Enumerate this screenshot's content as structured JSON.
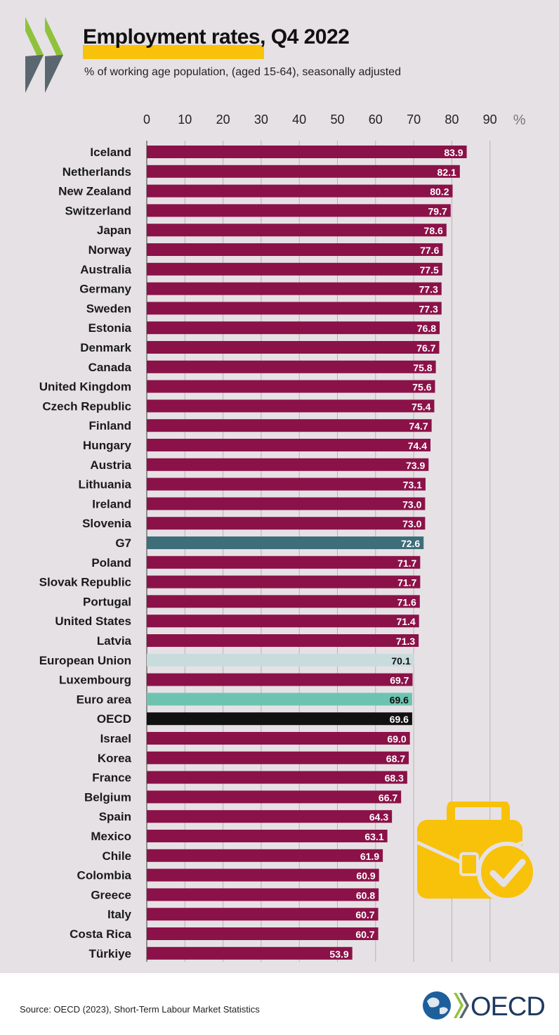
{
  "header": {
    "title": "Employment rates, Q4 2022",
    "subtitle": "% of working age population, (aged 15-64), seasonally adjusted"
  },
  "footer": {
    "source": "Source: OECD (2023), Short-Term Labour Market Statistics",
    "logo_text": "OECD"
  },
  "colors": {
    "bar_default": "#8b1248",
    "bar_g7": "#3d6e7a",
    "bar_eu": "#c8dcde",
    "bar_euro_area": "#6cc4b0",
    "bar_oecd": "#111111",
    "accent": "#f9c20a"
  },
  "icons": [
    "chevrons-logo-icon",
    "briefcase-check-icon",
    "globe-icon"
  ],
  "chart_data": {
    "type": "bar",
    "orientation": "horizontal",
    "title": "Employment rates, Q4 2022",
    "xlabel": "%",
    "xlim": [
      0,
      90
    ],
    "xticks": [
      0,
      10,
      20,
      30,
      40,
      50,
      60,
      70,
      80,
      90
    ],
    "unit_label": "%",
    "grid": true,
    "categories": [
      "Iceland",
      "Netherlands",
      "New Zealand",
      "Switzerland",
      "Japan",
      "Norway",
      "Australia",
      "Germany",
      "Sweden",
      "Estonia",
      "Denmark",
      "Canada",
      "United Kingdom",
      "Czech Republic",
      "Finland",
      "Hungary",
      "Austria",
      "Lithuania",
      "Ireland",
      "Slovenia",
      "G7",
      "Poland",
      "Slovak Republic",
      "Portugal",
      "United States",
      "Latvia",
      "European Union",
      "Luxembourg",
      "Euro area",
      "OECD",
      "Israel",
      "Korea",
      "France",
      "Belgium",
      "Spain",
      "Mexico",
      "Chile",
      "Colombia",
      "Greece",
      "Italy",
      "Costa Rica",
      "Türkiye"
    ],
    "values": [
      83.9,
      82.1,
      80.2,
      79.7,
      78.6,
      77.6,
      77.5,
      77.3,
      77.3,
      76.8,
      76.7,
      75.8,
      75.6,
      75.4,
      74.7,
      74.4,
      73.9,
      73.1,
      73.0,
      73.0,
      72.6,
      71.7,
      71.7,
      71.6,
      71.4,
      71.3,
      70.1,
      69.7,
      69.6,
      69.6,
      69.0,
      68.7,
      68.3,
      66.7,
      64.3,
      63.1,
      61.9,
      60.9,
      60.8,
      60.7,
      60.7,
      53.9
    ],
    "labels": [
      "83.9",
      "82.1",
      "80.2",
      "79.7",
      "78.6",
      "77.6",
      "77.5",
      "77.3",
      "77.3",
      "76.8",
      "76.7",
      "75.8",
      "75.6",
      "75.4",
      "74.7",
      "74.4",
      "73.9",
      "73.1",
      "73.0",
      "73.0",
      "72.6",
      "71.7",
      "71.7",
      "71.6",
      "71.4",
      "71.3",
      "70.1",
      "69.7",
      "69.6",
      "69.6",
      "69.0",
      "68.7",
      "68.3",
      "66.7",
      "64.3",
      "63.1",
      "61.9",
      "60.9",
      "60.8",
      "60.7",
      "60.7",
      "53.9"
    ],
    "highlights": {
      "G7": "bar_g7",
      "European Union": "bar_eu",
      "Euro area": "bar_euro_area",
      "OECD": "bar_oecd"
    }
  }
}
